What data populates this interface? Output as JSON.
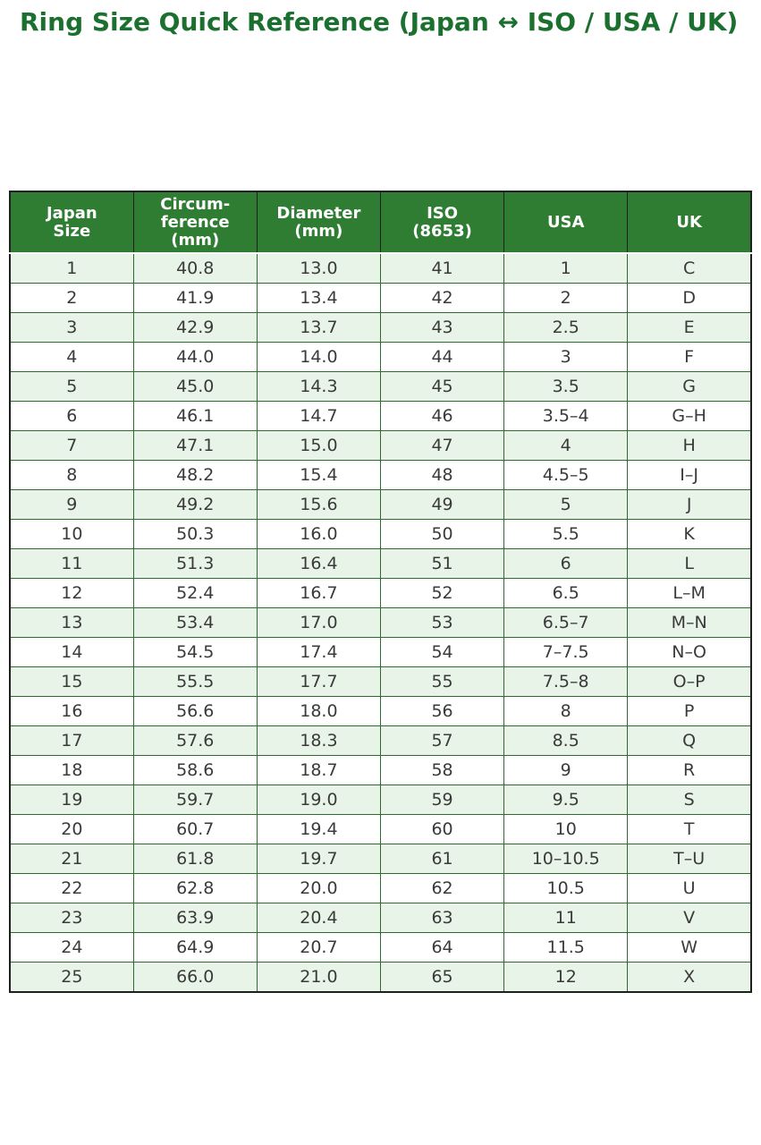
{
  "page": {
    "title": "Ring Size Quick Reference (Japan ↔ ISO / USA / UK)"
  },
  "colors": {
    "title_green": "#1b702f",
    "header_bg": "#2e7d32",
    "header_text": "#ffffff",
    "row_alt_bg": "#e8f4e8",
    "row_bg": "#ffffff",
    "cell_text": "#3a3a3a",
    "grid_line": "#2e6b2e",
    "outer_border": "#1f1f1f"
  },
  "chart_data": {
    "type": "table",
    "title": "Ring Size Quick Reference (Japan ↔ ISO / USA / UK)",
    "columns": [
      "Japan\nSize",
      "Circum-\nference\n(mm)",
      "Diameter\n(mm)",
      "ISO\n(8653)",
      "USA",
      "UK"
    ],
    "rows": [
      [
        "1",
        "40.8",
        "13.0",
        "41",
        "1",
        "C"
      ],
      [
        "2",
        "41.9",
        "13.4",
        "42",
        "2",
        "D"
      ],
      [
        "3",
        "42.9",
        "13.7",
        "43",
        "2.5",
        "E"
      ],
      [
        "4",
        "44.0",
        "14.0",
        "44",
        "3",
        "F"
      ],
      [
        "5",
        "45.0",
        "14.3",
        "45",
        "3.5",
        "G"
      ],
      [
        "6",
        "46.1",
        "14.7",
        "46",
        "3.5–4",
        "G–H"
      ],
      [
        "7",
        "47.1",
        "15.0",
        "47",
        "4",
        "H"
      ],
      [
        "8",
        "48.2",
        "15.4",
        "48",
        "4.5–5",
        "I–J"
      ],
      [
        "9",
        "49.2",
        "15.6",
        "49",
        "5",
        "J"
      ],
      [
        "10",
        "50.3",
        "16.0",
        "50",
        "5.5",
        "K"
      ],
      [
        "11",
        "51.3",
        "16.4",
        "51",
        "6",
        "L"
      ],
      [
        "12",
        "52.4",
        "16.7",
        "52",
        "6.5",
        "L–M"
      ],
      [
        "13",
        "53.4",
        "17.0",
        "53",
        "6.5–7",
        "M–N"
      ],
      [
        "14",
        "54.5",
        "17.4",
        "54",
        "7–7.5",
        "N–O"
      ],
      [
        "15",
        "55.5",
        "17.7",
        "55",
        "7.5–8",
        "O–P"
      ],
      [
        "16",
        "56.6",
        "18.0",
        "56",
        "8",
        "P"
      ],
      [
        "17",
        "57.6",
        "18.3",
        "57",
        "8.5",
        "Q"
      ],
      [
        "18",
        "58.6",
        "18.7",
        "58",
        "9",
        "R"
      ],
      [
        "19",
        "59.7",
        "19.0",
        "59",
        "9.5",
        "S"
      ],
      [
        "20",
        "60.7",
        "19.4",
        "60",
        "10",
        "T"
      ],
      [
        "21",
        "61.8",
        "19.7",
        "61",
        "10–10.5",
        "T–U"
      ],
      [
        "22",
        "62.8",
        "20.0",
        "62",
        "10.5",
        "U"
      ],
      [
        "23",
        "63.9",
        "20.4",
        "63",
        "11",
        "V"
      ],
      [
        "24",
        "64.9",
        "20.7",
        "64",
        "11.5",
        "W"
      ],
      [
        "25",
        "66.0",
        "21.0",
        "65",
        "12",
        "X"
      ]
    ]
  }
}
